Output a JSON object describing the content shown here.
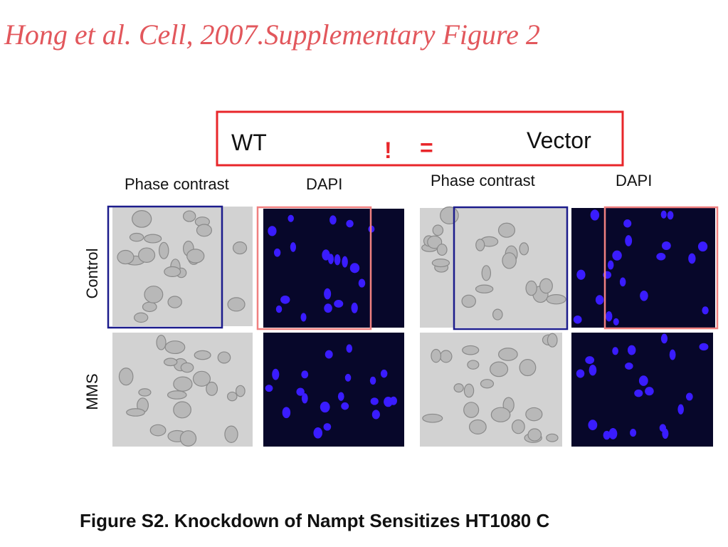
{
  "header": {
    "title": "Hong et al. Cell, 2007.Supplementary Figure 2"
  },
  "comparison": {
    "left": "WT",
    "not": "!",
    "equals": "=",
    "right": "Vector"
  },
  "columns": [
    "Phase contrast",
    "DAPI",
    "Phase contrast",
    "DAPI"
  ],
  "rows": [
    "Control",
    "MMS"
  ],
  "caption": "Figure S2. Knockdown of Nampt Sensitizes HT1080 C"
}
